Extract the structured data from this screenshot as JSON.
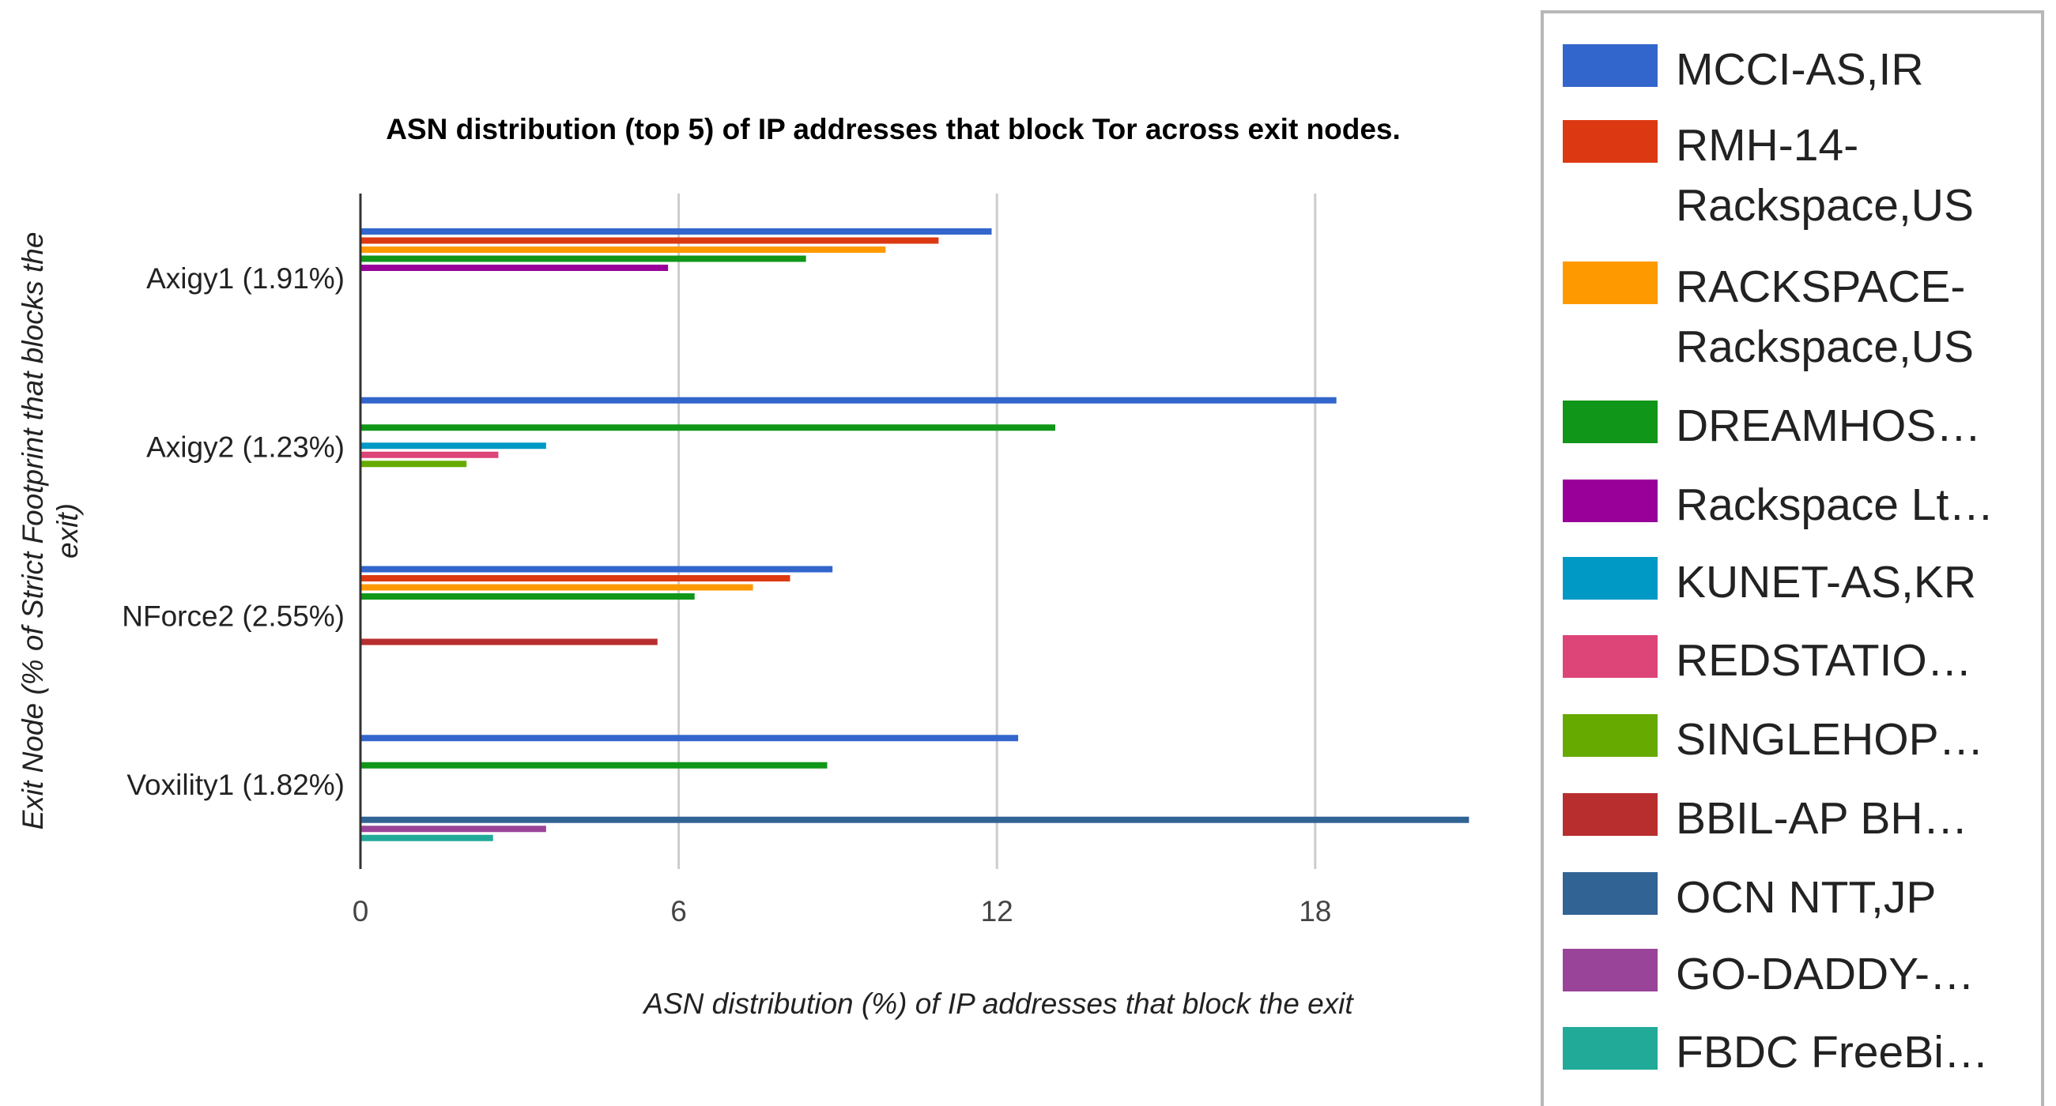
{
  "chart_data": {
    "type": "bar",
    "orientation": "horizontal",
    "title": "ASN distribution (top 5) of IP addresses that block Tor across exit nodes.",
    "xlabel": "ASN distribution (%) of IP addresses that block the exit",
    "ylabel": "Exit Node (% of Strict Footprint that blocks the exit)",
    "xlim": [
      0,
      21
    ],
    "xticks": [
      "0",
      "6",
      "12",
      "18"
    ],
    "grid": true,
    "legend_position": "right",
    "categories": [
      "Axigy1 (1.91%)",
      "Axigy2 (1.23%)",
      "NForce2 (2.55%)",
      "Voxility1 (1.82%)"
    ],
    "series": [
      {
        "name": "MCCI-AS,IR",
        "color": "#3366cc",
        "values": [
          11.9,
          18.4,
          8.9,
          12.4
        ]
      },
      {
        "name": "RMH-14-Rackspace,US",
        "color": "#dc3912",
        "values": [
          10.9,
          null,
          8.1,
          null
        ]
      },
      {
        "name": "RACKSPACE-Rackspace,US",
        "color": "#ff9900",
        "values": [
          9.9,
          null,
          7.4,
          null
        ]
      },
      {
        "name": "DREAMHOS…",
        "color": "#109618",
        "values": [
          8.4,
          13.1,
          6.3,
          8.8
        ]
      },
      {
        "name": "Rackspace Lt…",
        "color": "#990099",
        "values": [
          5.8,
          null,
          null,
          null
        ]
      },
      {
        "name": "KUNET-AS,KR",
        "color": "#0099c6",
        "values": [
          null,
          3.5,
          null,
          null
        ]
      },
      {
        "name": "REDSTATIO…",
        "color": "#dd4477",
        "values": [
          null,
          2.6,
          null,
          null
        ]
      },
      {
        "name": "SINGLEHOP…",
        "color": "#66aa00",
        "values": [
          null,
          2.0,
          null,
          null
        ]
      },
      {
        "name": "BBIL-AP BH…",
        "color": "#b82e2e",
        "values": [
          null,
          null,
          5.6,
          null
        ]
      },
      {
        "name": "OCN NTT,JP",
        "color": "#316395",
        "values": [
          null,
          null,
          null,
          20.9
        ]
      },
      {
        "name": "GO-DADDY-…",
        "color": "#994499",
        "values": [
          null,
          null,
          null,
          3.5
        ]
      },
      {
        "name": "FBDC FreeBi…",
        "color": "#22aa99",
        "values": [
          null,
          null,
          null,
          2.5
        ]
      }
    ]
  },
  "legend": {
    "items": [
      {
        "label": "MCCI-AS,IR",
        "color": "#3366cc"
      },
      {
        "label": "RMH-14- Rackspace,US",
        "color": "#dc3912"
      },
      {
        "label": "RACKSPACE- Rackspace,US",
        "color": "#ff9900"
      },
      {
        "label": "DREAMHOS…",
        "color": "#109618"
      },
      {
        "label": "Rackspace Lt…",
        "color": "#990099"
      },
      {
        "label": "KUNET-AS,KR",
        "color": "#0099c6"
      },
      {
        "label": "REDSTATIO…",
        "color": "#dd4477"
      },
      {
        "label": "SINGLEHOP…",
        "color": "#66aa00"
      },
      {
        "label": "BBIL-AP BH…",
        "color": "#b82e2e"
      },
      {
        "label": "OCN NTT,JP",
        "color": "#316395"
      },
      {
        "label": "GO-DADDY-…",
        "color": "#994499"
      },
      {
        "label": "FBDC FreeBi…",
        "color": "#22aa99"
      }
    ]
  }
}
